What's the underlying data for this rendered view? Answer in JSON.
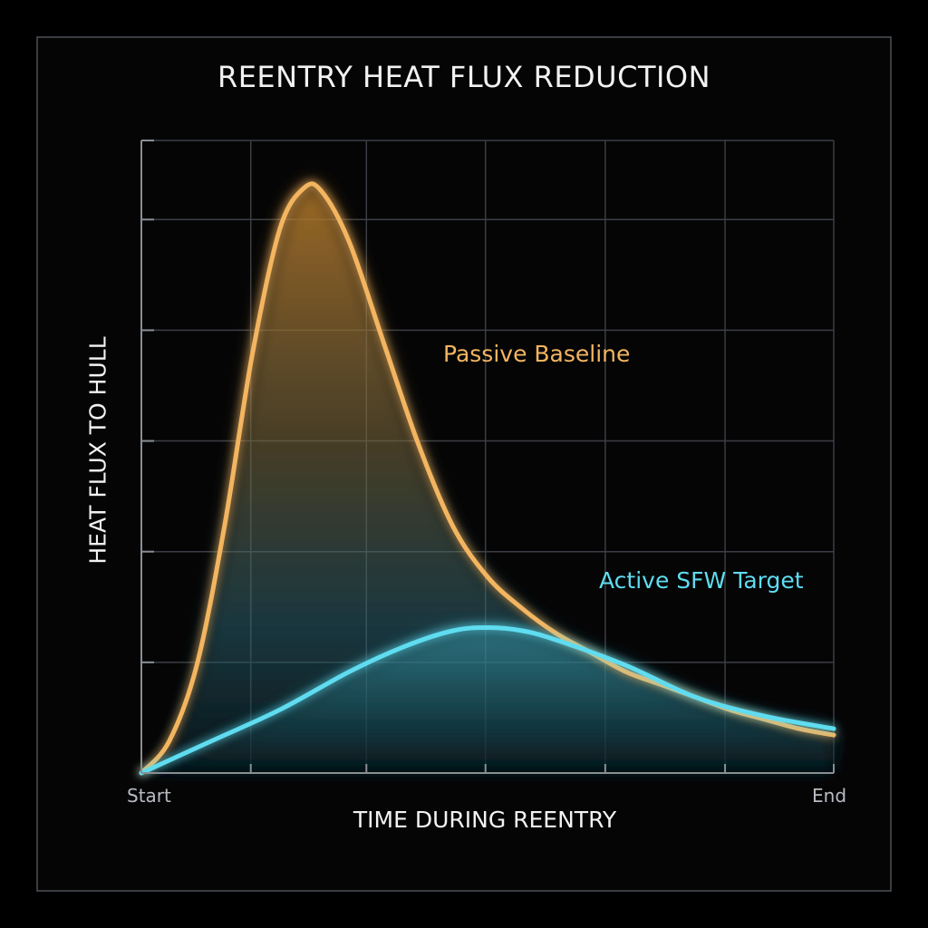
{
  "chart_data": {
    "type": "line",
    "title": "REENTRY HEAT FLUX REDUCTION",
    "xlabel": "TIME DURING REENTRY",
    "ylabel": "HEAT FLUX TO HULL",
    "x_tick_labels": [
      "Start",
      "End"
    ],
    "xlim": [
      0,
      1
    ],
    "ylim": [
      0,
      1
    ],
    "grid": true,
    "series": [
      {
        "name": "Passive Baseline",
        "color": "#f3b561",
        "points": [
          [
            0.0,
            0.0
          ],
          [
            0.04,
            0.05
          ],
          [
            0.08,
            0.17
          ],
          [
            0.12,
            0.39
          ],
          [
            0.16,
            0.66
          ],
          [
            0.2,
            0.86
          ],
          [
            0.235,
            0.925
          ],
          [
            0.26,
            0.92
          ],
          [
            0.3,
            0.84
          ],
          [
            0.35,
            0.68
          ],
          [
            0.4,
            0.52
          ],
          [
            0.45,
            0.39
          ],
          [
            0.5,
            0.31
          ],
          [
            0.55,
            0.26
          ],
          [
            0.6,
            0.22
          ],
          [
            0.65,
            0.19
          ],
          [
            0.7,
            0.16
          ],
          [
            0.75,
            0.14
          ],
          [
            0.8,
            0.12
          ],
          [
            0.85,
            0.1
          ],
          [
            0.9,
            0.085
          ],
          [
            0.95,
            0.07
          ],
          [
            1.0,
            0.06
          ]
        ]
      },
      {
        "name": "Active SFW Target",
        "color": "#5fdcf0",
        "points": [
          [
            0.0,
            0.0
          ],
          [
            0.1,
            0.05
          ],
          [
            0.2,
            0.1
          ],
          [
            0.3,
            0.16
          ],
          [
            0.38,
            0.2
          ],
          [
            0.45,
            0.225
          ],
          [
            0.5,
            0.23
          ],
          [
            0.55,
            0.225
          ],
          [
            0.6,
            0.21
          ],
          [
            0.7,
            0.17
          ],
          [
            0.8,
            0.12
          ],
          [
            0.9,
            0.09
          ],
          [
            1.0,
            0.07
          ]
        ]
      }
    ]
  },
  "colors": {
    "background": "#000000",
    "grid": "#3b3e44",
    "axis": "#8a8e94",
    "passive": "#f3b561",
    "active": "#5fdcf0"
  }
}
